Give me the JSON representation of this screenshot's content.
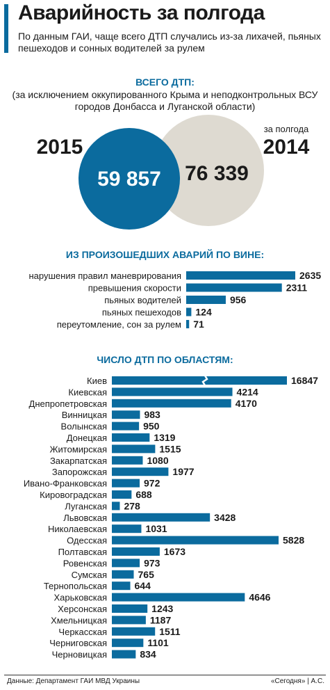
{
  "header": {
    "title": "Аварийность за полгода",
    "subtitle": "По данным ГАИ, чаще всего ДТП случались из-за лихачей, пьяных пешеходов и сонных водителей за рулем"
  },
  "totals": {
    "heading": "ВСЕГО ДТП:",
    "note": "(за исключением оккупированного Крыма и неподконтрольных ВСУ городов Донбасса и Луганской области)",
    "year_2015": "2015",
    "value_2015": "59 857",
    "year_2014": "2014",
    "period_2014": "за полгода",
    "value_2014": "76 339"
  },
  "colors": {
    "accent": "#0b6b9e",
    "circle_2014": "#dedad1",
    "text": "#1a1a1a"
  },
  "chart_data": [
    {
      "type": "bar",
      "orientation": "horizontal",
      "title": "ИЗ ПРОИЗОШЕДШИХ АВАРИЙ ПО ВИНЕ:",
      "categories": [
        "нарушения правил маневрирования",
        "превышения скорости",
        "пьяных водителей",
        "пьяных пешеходов",
        "переутомление, сон за рулем"
      ],
      "values": [
        2635,
        2311,
        956,
        124,
        71
      ]
    },
    {
      "type": "bar",
      "orientation": "horizontal",
      "title": "ЧИСЛО ДТП ПО ОБЛАСТЯМ:",
      "categories": [
        "Киев",
        "Киевская",
        "Днепропетровская",
        "Винницкая",
        "Волынская",
        "Донецкая",
        "Житомирская",
        "Закарпатская",
        "Запорожская",
        "Ивано-Франковская",
        "Кировоградская",
        "Луганская",
        "Львовская",
        "Николаевская",
        "Одесская",
        "Полтавская",
        "Ровенская",
        "Сумская",
        "Тернопольская",
        "Харьковская",
        "Херсонская",
        "Хмельницкая",
        "Черкасская",
        "Черниговская",
        "Черновицкая"
      ],
      "values": [
        16847,
        4214,
        4170,
        983,
        950,
        1319,
        1515,
        1080,
        1977,
        972,
        688,
        278,
        3428,
        1031,
        5828,
        1673,
        973,
        765,
        644,
        4646,
        1243,
        1187,
        1511,
        1101,
        834
      ],
      "axis_break": "Киев"
    }
  ],
  "footer": {
    "source": "Данные: Департамент ГАИ МВД Украины",
    "credit": "«Сегодня» | А.С."
  }
}
